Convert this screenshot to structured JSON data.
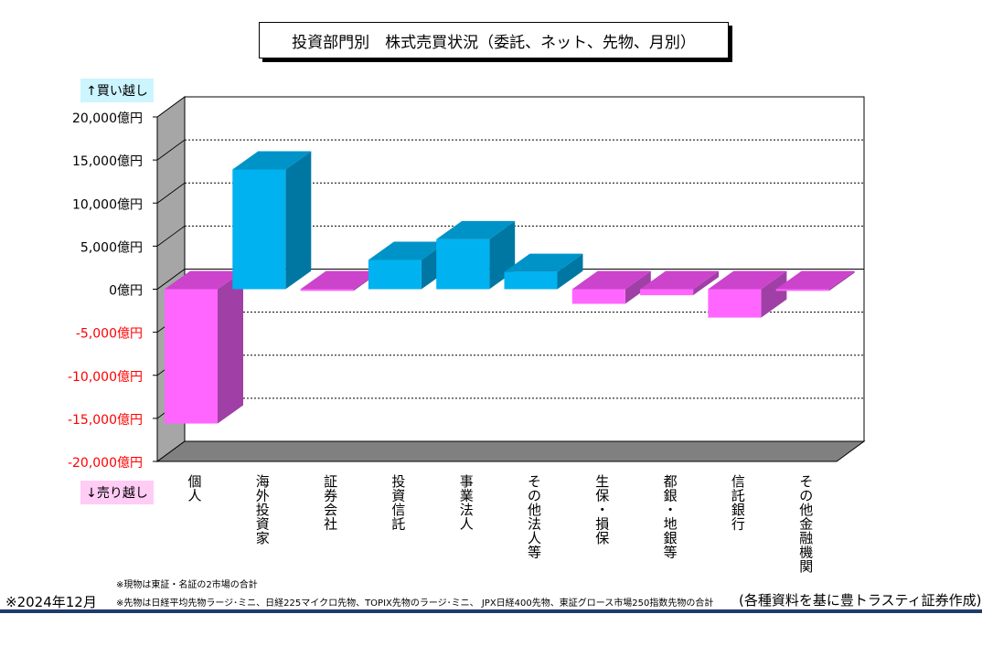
{
  "chart_data": {
    "type": "bar",
    "title": "投資部門別　株式売買状況（委託、ネット、先物、月別）",
    "categories": [
      "個人",
      "海外投資家",
      "証券会社",
      "投資信託",
      "事業法人",
      "その他法人等",
      "生保・損保",
      "都銀・地銀等",
      "信託銀行",
      "その他金融機関"
    ],
    "values": [
      -15600,
      13900,
      -200,
      3400,
      5800,
      2000,
      -1700,
      -700,
      -3300,
      -200
    ],
    "ylim": [
      -20000,
      20000
    ],
    "yticks": [
      20000,
      15000,
      10000,
      5000,
      0,
      -5000,
      -10000,
      -15000,
      -20000
    ],
    "ytick_labels": [
      "20,000億円",
      "15,000億円",
      "10,000億円",
      "5,000億円",
      "0億円",
      "-5,000億円",
      "-10,000億円",
      "-15,000億円",
      "-20,000億円"
    ],
    "grid": true,
    "colors": {
      "positive_front": "#00b2f0",
      "positive_side": "#0077a3",
      "positive_top": "#0093c8",
      "negative_front": "#ff66ff",
      "negative_side": "#a040a6",
      "negative_top": "#cc44cc",
      "positive_tick_label": "#000000",
      "negative_tick_label": "#ff0000"
    }
  },
  "labels": {
    "buy": "↑買い越し",
    "sell": "↓売り越し"
  },
  "notes": {
    "spot": "※現物は東証・名証の2市場の合計",
    "futures": "※先物は日経平均先物ラージ･ミニ、日経225マイクロ先物、TOPIX先物のラージ･ミニ、 JPX日経400先物、東証グロース市場250指数先物の合計",
    "as_of": "※2024年12月",
    "source": "(各種資料を基に豊トラスティ証券作成)"
  }
}
